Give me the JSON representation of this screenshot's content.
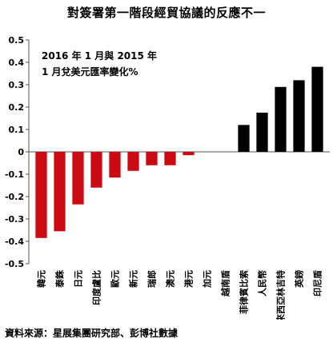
{
  "title": "對簽署第一階段經貿協議的反應不一",
  "source": "資料來源：星展集團研究部、彭博社數據",
  "colors": {
    "negative": "#cc0a14",
    "positive": "#000000",
    "axis": "#555555"
  },
  "chart_data": {
    "type": "bar",
    "title": "2016 年 1 月與 2015 年 1 月兌美元匯率變化%",
    "subtitle_lines": [
      "2016 年 1 月與 2015 年",
      "1 月兌美元匯率變化%"
    ],
    "categories": [
      "韓元",
      "泰銖",
      "日元",
      "印度盧比",
      "歐元",
      "新元",
      "瑞郎",
      "澳元",
      "港元",
      "加元",
      "越南盾",
      "菲律賓比索",
      "人民幣",
      "馬來西亞林吉特",
      "英鎊",
      "印尼盾"
    ],
    "values": [
      -0.385,
      -0.355,
      -0.235,
      -0.16,
      -0.115,
      -0.085,
      -0.06,
      -0.06,
      -0.015,
      0.0,
      0.0,
      0.12,
      0.175,
      0.29,
      0.32,
      0.38
    ],
    "ylim": [
      -0.5,
      0.5
    ],
    "yticks": [
      "0.5",
      "0.4",
      "0.3",
      "0.2",
      "0.1",
      "0",
      "-0.1",
      "-0.2",
      "-0.3",
      "-0.4",
      "-0.5"
    ],
    "xlabel": "",
    "ylabel": "",
    "grid": false
  }
}
